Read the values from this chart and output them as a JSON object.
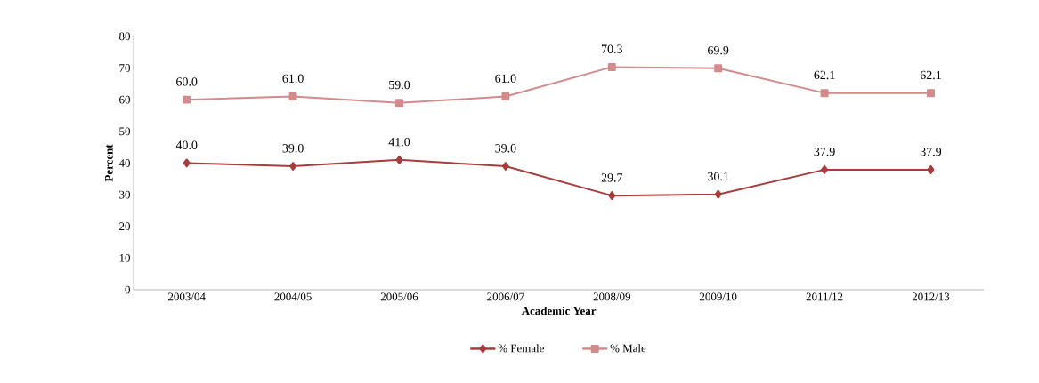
{
  "chart_data": {
    "type": "line",
    "xlabel": "Academic Year",
    "ylabel": "Percent",
    "categories": [
      "2003/04",
      "2004/05",
      "2005/06",
      "2006/07",
      "2008/09",
      "2009/10",
      "2011/12",
      "2012/13"
    ],
    "series": [
      {
        "name": "% Female",
        "color": "#a83c3c",
        "marker": "diamond",
        "values": [
          40.0,
          39.0,
          41.0,
          39.0,
          29.7,
          30.1,
          37.9,
          37.9
        ],
        "value_labels": [
          "40.0",
          "39.0",
          "41.0",
          "39.0",
          "29.7",
          "30.1",
          "37.9",
          "37.9"
        ]
      },
      {
        "name": "% Male",
        "color": "#d48a8a",
        "marker": "square",
        "values": [
          60.0,
          61.0,
          59.0,
          61.0,
          70.3,
          69.9,
          62.1,
          62.1
        ],
        "value_labels": [
          "60.0",
          "61.0",
          "59.0",
          "61.0",
          "70.3",
          "69.9",
          "62.1",
          "62.1"
        ]
      }
    ],
    "ylim": [
      0,
      80
    ],
    "yticks": [
      0,
      10,
      20,
      30,
      40,
      50,
      60,
      70,
      80
    ],
    "grid": false,
    "legend": "bottom"
  }
}
